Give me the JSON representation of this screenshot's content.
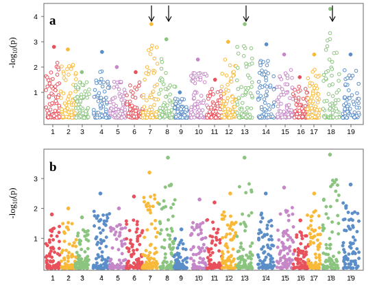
{
  "figure": {
    "panels": [
      {
        "letter": "a",
        "ylabel": "-log10(p)"
      },
      {
        "letter": "b",
        "ylabel": "-log10(p)"
      }
    ]
  },
  "chart_data": [
    {
      "type": "scatter",
      "panel": "a",
      "title": "",
      "xlabel": "",
      "ylabel": "-log10(p)",
      "ylim": [
        0,
        4.3
      ],
      "yticks": [
        1,
        2,
        3,
        4
      ],
      "grid": false,
      "x_categories": [
        "1",
        "2",
        "3",
        "4",
        "5",
        "6",
        "7",
        "8",
        "9",
        "10",
        "11",
        "12",
        "13",
        "14",
        "15",
        "16",
        "17",
        "18",
        "19"
      ],
      "colors": [
        "#e8505b",
        "#f9b938",
        "#8ac47e",
        "#5b8ec8",
        "#c587c7"
      ],
      "marker": "open circle",
      "series": [
        {
          "chrom": "1",
          "max_y": 2.8
        },
        {
          "chrom": "2",
          "max_y": 2.7
        },
        {
          "chrom": "3",
          "max_y": 1.8
        },
        {
          "chrom": "4",
          "max_y": 2.6
        },
        {
          "chrom": "5",
          "max_y": 2.0
        },
        {
          "chrom": "6",
          "max_y": 1.8
        },
        {
          "chrom": "7",
          "max_y": 3.7
        },
        {
          "chrom": "8",
          "max_y": 3.1
        },
        {
          "chrom": "9",
          "max_y": 1.0
        },
        {
          "chrom": "10",
          "max_y": 2.3
        },
        {
          "chrom": "11",
          "max_y": 1.5
        },
        {
          "chrom": "12",
          "max_y": 3.0
        },
        {
          "chrom": "13",
          "max_y": 3.7
        },
        {
          "chrom": "14",
          "max_y": 2.9
        },
        {
          "chrom": "15",
          "max_y": 2.5
        },
        {
          "chrom": "16",
          "max_y": 1.6
        },
        {
          "chrom": "17",
          "max_y": 2.5
        },
        {
          "chrom": "18",
          "max_y": 4.3
        },
        {
          "chrom": "19",
          "max_y": 2.5
        }
      ],
      "annotations": [
        {
          "type": "arrow",
          "chrom": "7"
        },
        {
          "type": "arrow",
          "chrom": "8"
        },
        {
          "type": "arrow",
          "chrom": "13"
        },
        {
          "type": "arrow",
          "chrom": "18"
        }
      ]
    },
    {
      "type": "scatter",
      "panel": "b",
      "title": "",
      "xlabel": "",
      "ylabel": "-log10(p)",
      "ylim": [
        0,
        3.8
      ],
      "yticks": [
        1,
        2,
        3
      ],
      "grid": false,
      "x_categories": [
        "1",
        "2",
        "3",
        "4",
        "5",
        "6",
        "7",
        "8",
        "9",
        "10",
        "11",
        "12",
        "13",
        "14",
        "15",
        "16",
        "17",
        "18",
        "19"
      ],
      "colors": [
        "#e8505b",
        "#f9b938",
        "#8ac47e",
        "#5b8ec8",
        "#c587c7"
      ],
      "marker": "filled circle",
      "series": [
        {
          "chrom": "1",
          "max_y": 1.8
        },
        {
          "chrom": "2",
          "max_y": 2.0
        },
        {
          "chrom": "3",
          "max_y": 1.7
        },
        {
          "chrom": "4",
          "max_y": 2.5
        },
        {
          "chrom": "5",
          "max_y": 2.0
        },
        {
          "chrom": "6",
          "max_y": 2.4
        },
        {
          "chrom": "7",
          "max_y": 3.2
        },
        {
          "chrom": "8",
          "max_y": 3.7
        },
        {
          "chrom": "9",
          "max_y": 1.3
        },
        {
          "chrom": "10",
          "max_y": 2.3
        },
        {
          "chrom": "11",
          "max_y": 2.2
        },
        {
          "chrom": "12",
          "max_y": 2.5
        },
        {
          "chrom": "13",
          "max_y": 3.7
        },
        {
          "chrom": "14",
          "max_y": 2.5
        },
        {
          "chrom": "15",
          "max_y": 2.7
        },
        {
          "chrom": "16",
          "max_y": 1.6
        },
        {
          "chrom": "17",
          "max_y": 2.5
        },
        {
          "chrom": "18",
          "max_y": 3.8
        },
        {
          "chrom": "19",
          "max_y": 2.8
        }
      ],
      "annotations": []
    }
  ]
}
